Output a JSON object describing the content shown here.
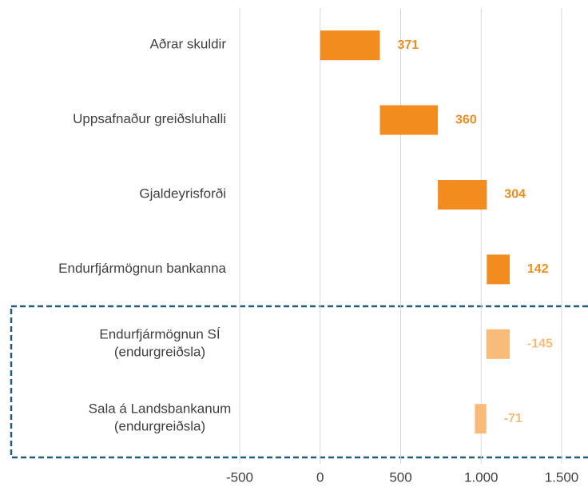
{
  "chart_data": {
    "type": "waterfall-horizontal",
    "categories": [
      [
        "Aðrar skuldir"
      ],
      [
        "Uppsafnaður greiðsluhalli"
      ],
      [
        "Gjaldeyrisforði"
      ],
      [
        "Endurfjármögnun bankanna"
      ],
      [
        "Endurfjármögnun SÍ",
        "(endurgreiðsla)"
      ],
      [
        "Sala á Landsbankanum",
        "(endurgreiðsla)"
      ]
    ],
    "values": [
      371,
      360,
      304,
      142,
      -145,
      -71
    ],
    "colors": [
      "#f28c1e",
      "#f28c1e",
      "#f28c1e",
      "#f28c1e",
      "#f9bb7a",
      "#f9bb7a"
    ],
    "xlim": [
      -500,
      1500
    ],
    "xticks": [
      -500,
      0,
      500,
      {
        "value": 1000,
        "label": "1.000"
      },
      {
        "value": 1500,
        "label": "1.500"
      }
    ],
    "grid": true
  }
}
